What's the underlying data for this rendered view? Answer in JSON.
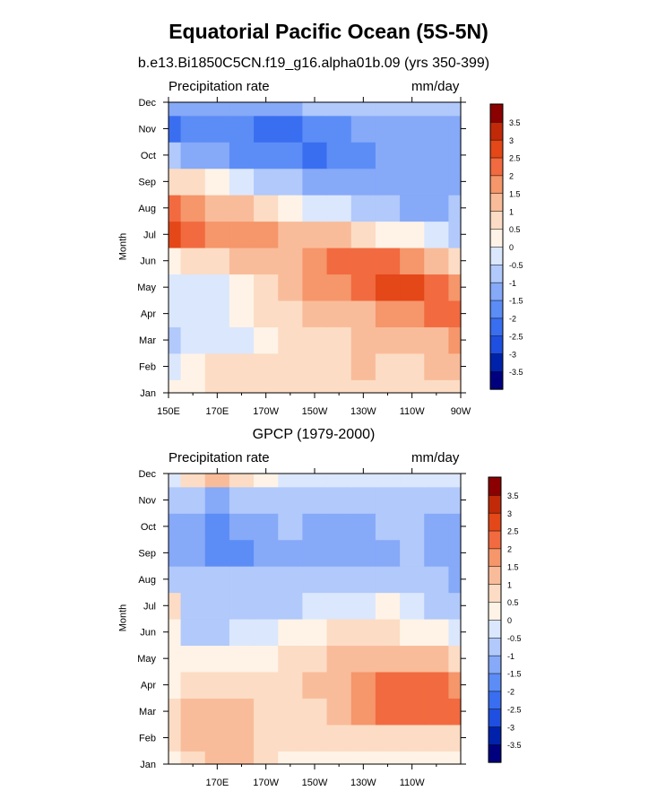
{
  "title": "Equatorial Pacific Ocean (5S-5N)",
  "colors": {
    "level_colors": [
      "#00007f",
      "#0022aa",
      "#1f4fe0",
      "#3a6ef0",
      "#5c8df6",
      "#86a9f8",
      "#b1c9fb",
      "#dbe7fd",
      "#fef3e6",
      "#fcdcc4",
      "#f9bc9a",
      "#f5966b",
      "#f26a3f",
      "#e44718",
      "#c12a08",
      "#8b0000"
    ]
  },
  "chart_data": [
    {
      "type": "heatmap",
      "title": "b.e13.Bi1850C5CN.f19_g16.alpha01b.09 (yrs 350-399)",
      "left_label": "Precipitation rate",
      "right_label": "mm/day",
      "ylabel": "Month",
      "x_ticks": [
        "150E",
        "170E",
        "170W",
        "150W",
        "130W",
        "110W",
        "90W"
      ],
      "y_ticks": [
        "Jan",
        "Feb",
        "Mar",
        "Apr",
        "May",
        "Jun",
        "Jul",
        "Aug",
        "Sep",
        "Oct",
        "Nov",
        "Dec"
      ],
      "colorbar_labels": [
        "-3.5",
        "-3",
        "-2.5",
        "-2",
        "-1.5",
        "-1",
        "-0.5",
        "0",
        "0.5",
        "1",
        "1.5",
        "2",
        "2.5",
        "3",
        "3.5"
      ],
      "longitudes": [
        150,
        160,
        170,
        180,
        190,
        200,
        210,
        220,
        230,
        240,
        250,
        260,
        270
      ],
      "values": [
        [
          0.2,
          0.4,
          0.5,
          0.5,
          0.5,
          0.6,
          0.6,
          0.6,
          0.7,
          0.6,
          0.6,
          0.7,
          0.8
        ],
        [
          -0.3,
          0.4,
          0.6,
          0.6,
          0.6,
          0.7,
          0.7,
          0.8,
          1.0,
          0.9,
          0.9,
          1.0,
          1.2
        ],
        [
          -0.6,
          -0.4,
          -0.3,
          -0.2,
          0.2,
          0.5,
          0.7,
          0.9,
          1.0,
          1.1,
          1.2,
          1.3,
          1.6
        ],
        [
          -0.4,
          -0.4,
          -0.3,
          0.2,
          0.6,
          0.8,
          1.0,
          1.2,
          1.4,
          1.6,
          1.8,
          2.0,
          2.2
        ],
        [
          -0.3,
          -0.3,
          -0.1,
          0.4,
          0.8,
          1.1,
          1.5,
          1.9,
          2.3,
          2.5,
          2.6,
          2.2,
          1.7
        ],
        [
          0.4,
          0.6,
          0.8,
          1.0,
          1.2,
          1.4,
          1.8,
          2.1,
          2.2,
          2.0,
          1.8,
          1.3,
          0.5
        ],
        [
          2.6,
          2.2,
          1.8,
          1.7,
          1.6,
          1.4,
          1.2,
          1.0,
          0.7,
          0.4,
          0.1,
          -0.3,
          -0.6
        ],
        [
          2.0,
          1.7,
          1.4,
          1.0,
          0.6,
          0.3,
          -0.1,
          -0.5,
          -0.8,
          -1.0,
          -1.1,
          -1.1,
          -1.0
        ],
        [
          0.8,
          0.5,
          0.1,
          -0.4,
          -0.8,
          -1.0,
          -1.2,
          -1.4,
          -1.5,
          -1.5,
          -1.4,
          -1.3,
          -1.2
        ],
        [
          -1.0,
          -1.2,
          -1.4,
          -1.6,
          -1.8,
          -2.0,
          -2.1,
          -2.0,
          -1.8,
          -1.5,
          -1.3,
          -1.2,
          -1.1
        ],
        [
          -2.3,
          -1.8,
          -1.9,
          -2.0,
          -2.3,
          -2.2,
          -2.0,
          -1.7,
          -1.5,
          -1.3,
          -1.2,
          -1.2,
          -1.1
        ],
        [
          -1.2,
          -1.3,
          -1.3,
          -1.3,
          -1.2,
          -1.1,
          -1.0,
          -1.0,
          -1.0,
          -1.0,
          -1.0,
          -1.0,
          -1.0
        ]
      ]
    },
    {
      "type": "heatmap",
      "title": "GPCP (1979-2000)",
      "left_label": "Precipitation rate",
      "right_label": "mm/day",
      "ylabel": "Month",
      "x_ticks": [
        "170E",
        "170W",
        "150W",
        "130W",
        "110W"
      ],
      "y_ticks": [
        "Jan",
        "Feb",
        "Mar",
        "Apr",
        "May",
        "Jun",
        "Jul",
        "Aug",
        "Sep",
        "Oct",
        "Nov",
        "Dec"
      ],
      "colorbar_labels": [
        "3.5",
        "3",
        "2.5",
        "2",
        "1.5",
        "1",
        "0.5",
        "0",
        "-0.5",
        "-1",
        "-1.5",
        "-2",
        "-2.5",
        "-3",
        "-3.5"
      ],
      "longitudes": [
        150,
        160,
        170,
        180,
        190,
        200,
        210,
        220,
        230,
        240,
        250,
        260,
        270
      ],
      "values": [
        [
          0.4,
          0.8,
          1.2,
          1.0,
          0.6,
          0.4,
          0.3,
          0.4,
          0.4,
          0.4,
          0.3,
          0.4,
          0.4
        ],
        [
          0.6,
          1.1,
          1.4,
          1.3,
          0.8,
          0.5,
          0.5,
          0.6,
          0.6,
          0.7,
          0.6,
          0.6,
          0.7
        ],
        [
          0.5,
          1.0,
          1.4,
          1.3,
          0.9,
          0.6,
          0.8,
          1.2,
          1.6,
          2.0,
          2.2,
          2.2,
          2.1
        ],
        [
          0.3,
          0.6,
          0.8,
          0.9,
          0.7,
          0.7,
          1.0,
          1.4,
          1.7,
          2.1,
          2.2,
          2.3,
          1.6
        ],
        [
          0.4,
          0.3,
          0.2,
          0.2,
          0.3,
          0.5,
          0.8,
          1.1,
          1.3,
          1.4,
          1.3,
          1.2,
          0.8
        ],
        [
          0.3,
          -0.6,
          -0.7,
          -0.4,
          -0.2,
          0.2,
          0.4,
          0.5,
          0.5,
          0.5,
          0.4,
          0.2,
          -0.3
        ],
        [
          0.6,
          -0.8,
          -0.9,
          -0.8,
          -0.7,
          -0.6,
          -0.4,
          -0.2,
          -0.1,
          0.0,
          -0.2,
          -0.6,
          -1.0
        ],
        [
          -0.7,
          -0.9,
          -1.0,
          -1.0,
          -0.9,
          -0.9,
          -0.8,
          -0.8,
          -0.8,
          -0.8,
          -0.8,
          -1.0,
          -1.3
        ],
        [
          -1.2,
          -1.4,
          -1.9,
          -1.6,
          -1.3,
          -1.1,
          -1.4,
          -1.5,
          -1.4,
          -1.3,
          -1.0,
          -1.2,
          -1.4
        ],
        [
          -1.1,
          -1.4,
          -1.7,
          -1.5,
          -1.2,
          -1.0,
          -1.1,
          -1.2,
          -1.1,
          -1.0,
          -0.9,
          -1.1,
          -1.3
        ],
        [
          -0.7,
          -1.0,
          -1.1,
          -1.0,
          -0.9,
          -0.8,
          -0.7,
          -0.7,
          -0.7,
          -0.7,
          -0.7,
          -0.7,
          -0.8
        ],
        [
          -0.2,
          0.6,
          1.0,
          0.5,
          0.0,
          -0.3,
          -0.3,
          -0.3,
          -0.3,
          -0.3,
          -0.3,
          -0.4,
          -0.4
        ]
      ]
    }
  ]
}
